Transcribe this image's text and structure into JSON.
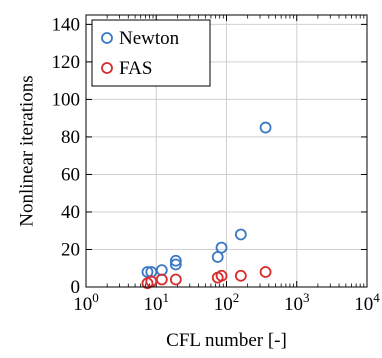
{
  "chart_data": {
    "type": "scatter",
    "title": "",
    "xlabel": "CFL number [-]",
    "ylabel": "Nonlinear iterations",
    "xscale": "log",
    "xlim": [
      1,
      10000
    ],
    "ylim": [
      0,
      145
    ],
    "grid": true,
    "legend_position": "top-left",
    "x_ticks": [
      {
        "value": 1,
        "base": "10",
        "exp": "0"
      },
      {
        "value": 10,
        "base": "10",
        "exp": "1"
      },
      {
        "value": 100,
        "base": "10",
        "exp": "2"
      },
      {
        "value": 1000,
        "base": "10",
        "exp": "3"
      },
      {
        "value": 10000,
        "base": "10",
        "exp": "4"
      }
    ],
    "y_ticks": [
      {
        "value": 0,
        "label": "0"
      },
      {
        "value": 20,
        "label": "20"
      },
      {
        "value": 40,
        "label": "40"
      },
      {
        "value": 60,
        "label": "60"
      },
      {
        "value": 80,
        "label": "80"
      },
      {
        "value": 100,
        "label": "100"
      },
      {
        "value": 120,
        "label": "120"
      },
      {
        "value": 140,
        "label": "140"
      }
    ],
    "series": [
      {
        "name": "Newton",
        "color": "#3B78C4",
        "marker": "circle-open",
        "points": [
          {
            "x": 7.5,
            "y": 8
          },
          {
            "x": 8.5,
            "y": 8
          },
          {
            "x": 12,
            "y": 9
          },
          {
            "x": 19,
            "y": 12
          },
          {
            "x": 19,
            "y": 14
          },
          {
            "x": 75,
            "y": 16
          },
          {
            "x": 85,
            "y": 21
          },
          {
            "x": 160,
            "y": 28
          },
          {
            "x": 360,
            "y": 85
          }
        ]
      },
      {
        "name": "FAS",
        "color": "#D62C2C",
        "marker": "circle-open",
        "points": [
          {
            "x": 7.5,
            "y": 2
          },
          {
            "x": 8.5,
            "y": 3
          },
          {
            "x": 12,
            "y": 4
          },
          {
            "x": 19,
            "y": 4
          },
          {
            "x": 75,
            "y": 5
          },
          {
            "x": 85,
            "y": 6
          },
          {
            "x": 160,
            "y": 6
          },
          {
            "x": 360,
            "y": 8
          }
        ]
      }
    ]
  }
}
